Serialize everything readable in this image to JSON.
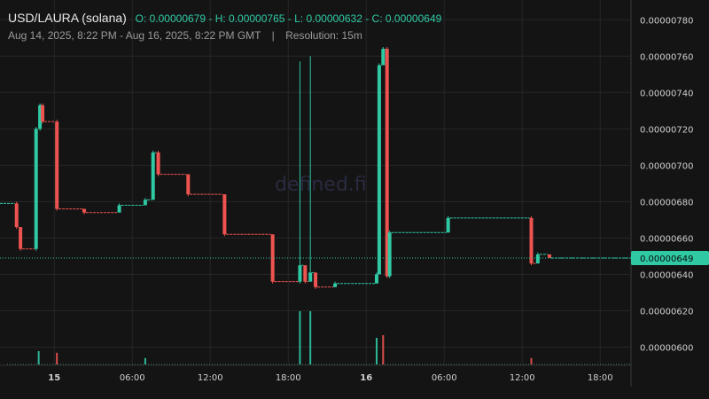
{
  "header": {
    "pair": "USD/LAURA (solana)",
    "open_label": "O:",
    "open": "0.00000679",
    "high_label": "H:",
    "high": "0.00000765",
    "low_label": "L:",
    "low": "0.00000632",
    "close_label": "C:",
    "close": "0.00000649",
    "range": "Aug 14, 2025, 8:22 PM - Aug 16, 2025, 8:22 PM GMT",
    "separator": "|",
    "resolution_label": "Resolution:",
    "resolution": "15m"
  },
  "watermark": "defined.fi",
  "colors": {
    "up": "#2fc9a4",
    "down": "#ef5350",
    "grid": "#262626",
    "background": "#141414",
    "volume": "#3e7d70"
  },
  "chart_data": {
    "type": "candlestick",
    "title": "",
    "xlabel": "",
    "ylabel": "",
    "ylim": [
      5.9e-06,
      7.85e-06
    ],
    "yticks": [
      "0.00000780",
      "0.00000760",
      "0.00000740",
      "0.00000720",
      "0.00000700",
      "0.00000680",
      "0.00000660",
      "0.00000640",
      "0.00000620",
      "0.00000600"
    ],
    "x_range_hours": [
      20.37,
      68.37
    ],
    "xticks": [
      {
        "label": "15",
        "hour": 24,
        "bold": true
      },
      {
        "label": "06:00",
        "hour": 30
      },
      {
        "label": "12:00",
        "hour": 36
      },
      {
        "label": "18:00",
        "hour": 42
      },
      {
        "label": "16",
        "hour": 48,
        "bold": true
      },
      {
        "label": "06:00",
        "hour": 54
      },
      {
        "label": "12:00",
        "hour": 60
      },
      {
        "label": "18:00",
        "hour": 66
      }
    ],
    "last_price": "0.00000649",
    "candles": [
      {
        "h": 21.1,
        "o": 6.79e-06,
        "h_": 6.8e-06,
        "l": 6.65e-06,
        "c": 6.66e-06
      },
      {
        "h": 21.4,
        "o": 6.66e-06,
        "h_": 6.66e-06,
        "l": 6.53e-06,
        "c": 6.54e-06
      },
      {
        "h": 22.6,
        "o": 6.54e-06,
        "h_": 7.21e-06,
        "l": 6.53e-06,
        "c": 7.2e-06
      },
      {
        "h": 22.9,
        "o": 7.2e-06,
        "h_": 7.34e-06,
        "l": 7.19e-06,
        "c": 7.33e-06
      },
      {
        "h": 23.1,
        "o": 7.33e-06,
        "h_": 7.34e-06,
        "l": 7.23e-06,
        "c": 7.24e-06
      },
      {
        "h": 24.2,
        "o": 7.24e-06,
        "h_": 7.25e-06,
        "l": 6.75e-06,
        "c": 6.76e-06
      },
      {
        "h": 26.3,
        "o": 6.76e-06,
        "h_": 6.76e-06,
        "l": 6.73e-06,
        "c": 6.74e-06
      },
      {
        "h": 29.0,
        "o": 6.74e-06,
        "h_": 6.79e-06,
        "l": 6.74e-06,
        "c": 6.78e-06
      },
      {
        "h": 31.0,
        "o": 6.78e-06,
        "h_": 6.82e-06,
        "l": 6.78e-06,
        "c": 6.81e-06
      },
      {
        "h": 31.6,
        "o": 6.81e-06,
        "h_": 7.08e-06,
        "l": 6.81e-06,
        "c": 7.07e-06
      },
      {
        "h": 32.0,
        "o": 7.07e-06,
        "h_": 7.08e-06,
        "l": 6.94e-06,
        "c": 6.95e-06
      },
      {
        "h": 34.3,
        "o": 6.95e-06,
        "h_": 6.95e-06,
        "l": 6.83e-06,
        "c": 6.84e-06
      },
      {
        "h": 37.1,
        "o": 6.84e-06,
        "h_": 6.84e-06,
        "l": 6.61e-06,
        "c": 6.62e-06
      },
      {
        "h": 40.8,
        "o": 6.62e-06,
        "h_": 6.62e-06,
        "l": 6.35e-06,
        "c": 6.36e-06
      },
      {
        "h": 42.9,
        "o": 6.36e-06,
        "h_": 7.57e-06,
        "l": 6.35e-06,
        "c": 6.45e-06
      },
      {
        "h": 43.3,
        "o": 6.45e-06,
        "h_": 6.45e-06,
        "l": 6.35e-06,
        "c": 6.36e-06
      },
      {
        "h": 43.7,
        "o": 6.36e-06,
        "h_": 7.6e-06,
        "l": 6.36e-06,
        "c": 6.41e-06
      },
      {
        "h": 44.1,
        "o": 6.41e-06,
        "h_": 6.41e-06,
        "l": 6.32e-06,
        "c": 6.33e-06
      },
      {
        "h": 45.6,
        "o": 6.33e-06,
        "h_": 6.36e-06,
        "l": 6.33e-06,
        "c": 6.35e-06
      },
      {
        "h": 48.8,
        "o": 6.35e-06,
        "h_": 6.41e-06,
        "l": 6.35e-06,
        "c": 6.4e-06
      },
      {
        "h": 49.0,
        "o": 6.4e-06,
        "h_": 7.56e-06,
        "l": 6.4e-06,
        "c": 7.55e-06
      },
      {
        "h": 49.3,
        "o": 7.55e-06,
        "h_": 7.65e-06,
        "l": 7.55e-06,
        "c": 7.64e-06
      },
      {
        "h": 49.6,
        "o": 7.64e-06,
        "h_": 7.65e-06,
        "l": 6.38e-06,
        "c": 6.39e-06
      },
      {
        "h": 49.8,
        "o": 6.39e-06,
        "h_": 6.64e-06,
        "l": 6.38e-06,
        "c": 6.63e-06
      },
      {
        "h": 54.3,
        "o": 6.63e-06,
        "h_": 6.72e-06,
        "l": 6.63e-06,
        "c": 6.71e-06
      },
      {
        "h": 60.7,
        "o": 6.71e-06,
        "h_": 6.72e-06,
        "l": 6.45e-06,
        "c": 6.46e-06
      },
      {
        "h": 61.2,
        "o": 6.46e-06,
        "h_": 6.52e-06,
        "l": 6.46e-06,
        "c": 6.51e-06
      },
      {
        "h": 62.1,
        "o": 6.51e-06,
        "h_": 6.51e-06,
        "l": 6.49e-06,
        "c": 6.49e-06
      }
    ],
    "volume_relative": [
      {
        "h": 22.8,
        "v": 0.25,
        "up": true
      },
      {
        "h": 24.2,
        "v": 0.22,
        "up": false
      },
      {
        "h": 31.0,
        "v": 0.12,
        "up": true
      },
      {
        "h": 42.9,
        "v": 1.0,
        "up": true
      },
      {
        "h": 43.7,
        "v": 1.0,
        "up": true
      },
      {
        "h": 48.8,
        "v": 0.5,
        "up": true
      },
      {
        "h": 49.3,
        "v": 0.55,
        "up": false
      },
      {
        "h": 60.7,
        "v": 0.12,
        "up": false
      }
    ]
  }
}
